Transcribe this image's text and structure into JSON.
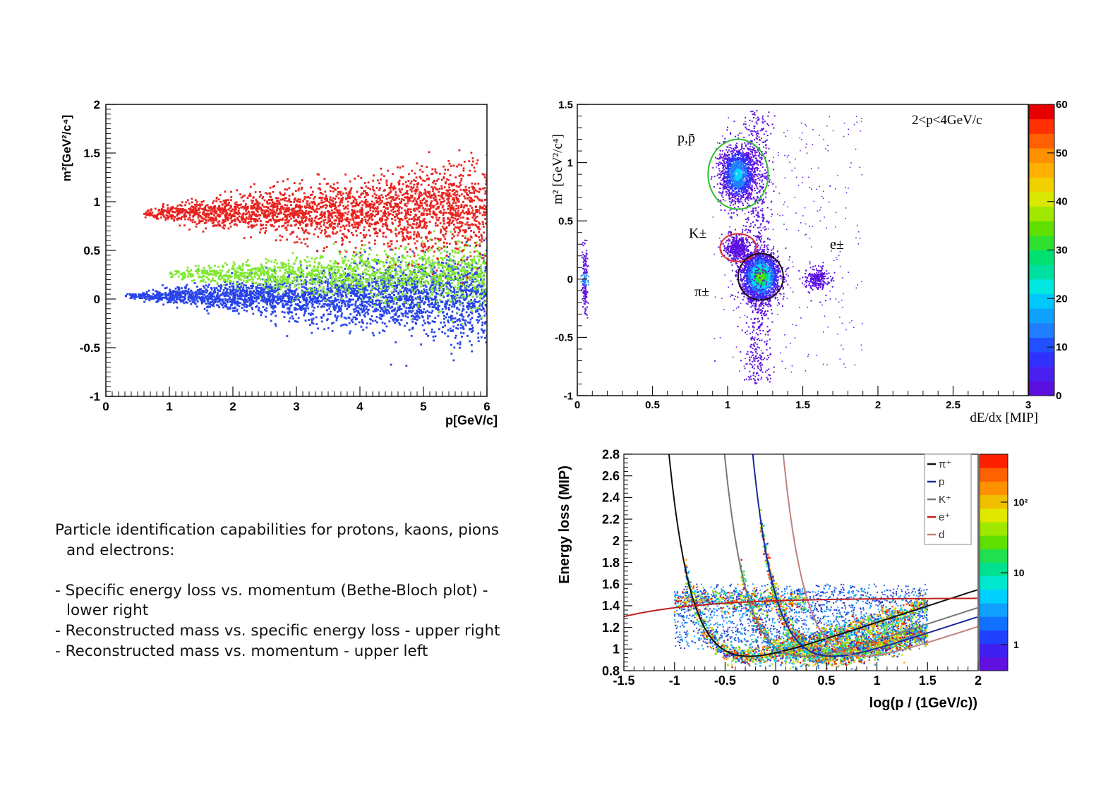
{
  "description": {
    "intro": [
      "Particle identification capabilities for protons, kaons, pions",
      "and electrons:"
    ],
    "items": [
      [
        "- Specific energy loss vs. momentum (Bethe-Bloch plot) -",
        "lower right"
      ],
      [
        "- Reconstructed mass vs. specific energy loss - upper right"
      ],
      [
        "- Reconstructed mass vs. momentum - upper left"
      ]
    ]
  },
  "chart_data": [
    {
      "type": "scatter",
      "xlabel": "p[GeV/c]",
      "ylabel": "m²[GeV²/c⁴]",
      "xlim": [
        0,
        6
      ],
      "ylim": [
        -1,
        2
      ],
      "xticks": [
        "0",
        "1",
        "2",
        "3",
        "4",
        "5",
        "6"
      ],
      "yticks": [
        "-1",
        "-0.5",
        "0",
        "0.5",
        "1",
        "1.5",
        "2"
      ],
      "series": [
        {
          "color": "#e8231f",
          "x_range": [
            0.6,
            6
          ],
          "center": 0.88,
          "spread_start": 0.05,
          "spread_end": 0.5
        },
        {
          "color": "#7fe830",
          "x_range": [
            1.0,
            6
          ],
          "center": 0.25,
          "spread_start": 0.05,
          "spread_end": 0.35
        },
        {
          "color": "#2844e8",
          "x_range": [
            0.3,
            6
          ],
          "center": 0.03,
          "spread_start": 0.02,
          "spread_end": 0.45
        }
      ]
    },
    {
      "type": "heatmap",
      "xlabel": "dE/dx [MIP]",
      "ylabel": "m² [GeV²/c⁴]",
      "xlim": [
        0,
        3
      ],
      "ylim": [
        -1,
        1.5
      ],
      "xticks": [
        "0",
        "0.5",
        "1",
        "1.5",
        "2",
        "2.5",
        "3"
      ],
      "yticks": [
        "-1",
        "-0.5",
        "0",
        "0.5",
        "1",
        "1.5"
      ],
      "annotation": "2<p<4GeV/c",
      "colorbar": {
        "min": 0,
        "max": 60,
        "ticks": [
          "0",
          "10",
          "20",
          "30",
          "40",
          "50",
          "60"
        ]
      },
      "clusters": [
        {
          "label": "p,p̄",
          "cx": 1.07,
          "cy": 0.9,
          "sx": 0.06,
          "sy": 0.12,
          "n": 1500,
          "ring": "#30c030",
          "rx": 0.2,
          "ry": 0.3
        },
        {
          "label": "K±",
          "cx": 1.07,
          "cy": 0.27,
          "sx": 0.04,
          "sy": 0.06,
          "n": 450,
          "ring": "#e03030",
          "rx": 0.12,
          "ry": 0.12
        },
        {
          "label": "π±",
          "cx": 1.22,
          "cy": 0.02,
          "sx": 0.06,
          "sy": 0.1,
          "n": 2500,
          "ring": "#111111",
          "rx": 0.15,
          "ry": 0.2
        },
        {
          "label": "e±",
          "cx": 1.6,
          "cy": 0.0,
          "sx": 0.04,
          "sy": 0.05,
          "n": 250,
          "ring": "",
          "rx": 0,
          "ry": 0
        }
      ]
    },
    {
      "type": "heatmap",
      "xlabel": "log(p / (1GeV/c))",
      "ylabel": "Energy loss (MIP)",
      "xlim": [
        -1.5,
        2
      ],
      "ylim": [
        0.8,
        2.8
      ],
      "xticks": [
        "-1.5",
        "-1",
        "-0.5",
        "0",
        "0.5",
        "1",
        "1.5",
        "2"
      ],
      "yticks": [
        "0.8",
        "1",
        "1.2",
        "1.4",
        "1.6",
        "1.8",
        "2",
        "2.2",
        "2.4",
        "2.6",
        "2.8"
      ],
      "colorbar": {
        "scale": "log",
        "ticks": [
          "1",
          "10",
          "10²"
        ]
      },
      "legend": {
        "placement": "top-right",
        "entries": [
          {
            "label": "π⁺",
            "color": "#111111"
          },
          {
            "label": "p",
            "color": "#1a2a9a"
          },
          {
            "label": "K⁺",
            "color": "#777777"
          },
          {
            "label": "e⁺",
            "color": "#c02020"
          },
          {
            "label": "d",
            "color": "#c08080"
          }
        ]
      },
      "curves": [
        {
          "name": "π⁺",
          "color": "#111111",
          "mass": 0.1396
        },
        {
          "name": "K⁺",
          "color": "#777777",
          "mass": 0.4937
        },
        {
          "name": "p",
          "color": "#1a2a9a",
          "mass": 0.9383
        },
        {
          "name": "d",
          "color": "#c08080",
          "mass": 1.8756
        },
        {
          "name": "e⁺",
          "color": "#c02020",
          "mass": 0.000511
        }
      ]
    }
  ]
}
